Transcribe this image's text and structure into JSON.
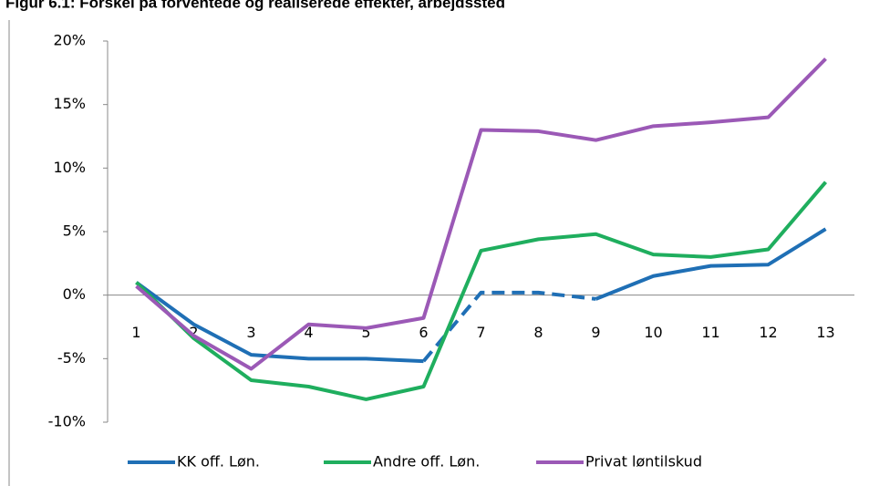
{
  "chart_data": {
    "type": "line",
    "title": "Figur 6.1: Forskel på forventede og realiserede effekter, arbejdssted",
    "categories": [
      "1",
      "2",
      "3",
      "4",
      "5",
      "6",
      "7",
      "8",
      "9",
      "10",
      "11",
      "12",
      "13"
    ],
    "series": [
      {
        "name": "KK off. Løn.",
        "color": "#1f6fb5",
        "dash": [
          5,
          8
        ],
        "values": [
          1.0,
          -2.3,
          -4.7,
          -5.0,
          -5.0,
          -5.2,
          0.2,
          0.2,
          -0.3,
          1.5,
          2.3,
          2.4,
          5.2
        ]
      },
      {
        "name": "Andre off. Løn.",
        "color": "#1fae5e",
        "values": [
          1.0,
          -3.4,
          -6.7,
          -7.2,
          -8.2,
          -7.2,
          3.5,
          4.4,
          4.8,
          3.2,
          3.0,
          3.6,
          8.9
        ]
      },
      {
        "name": "Privat løntilskud",
        "color": "#9b59b6",
        "values": [
          0.7,
          -3.2,
          -5.8,
          -2.3,
          -2.6,
          -1.8,
          13.0,
          12.9,
          12.2,
          13.3,
          13.6,
          14.0,
          18.6
        ]
      }
    ],
    "ylim": [
      -10,
      20
    ],
    "yticks": [
      {
        "value": -10,
        "label": "-10%"
      },
      {
        "value": -5,
        "label": "-5%"
      },
      {
        "value": 0,
        "label": "0%"
      },
      {
        "value": 5,
        "label": "5%"
      },
      {
        "value": 10,
        "label": "10%"
      },
      {
        "value": 15,
        "label": "15%"
      },
      {
        "value": 20,
        "label": "20%"
      }
    ],
    "legend": "bottom"
  }
}
